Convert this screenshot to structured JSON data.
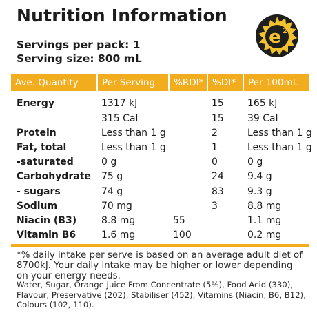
{
  "title": "Nutrition Information",
  "servings_per_pack": "Servings per pack: 1",
  "serving_size": "Serving size: 800 mL",
  "logo": {
    "mark": "e",
    "superscript": "2",
    "accent": "#f2c12e"
  },
  "accent_color": "#f2ad1f",
  "table": {
    "headers": [
      "Ave. Quantity",
      "Per Serving",
      "%RDI*",
      "%DI*",
      "Per 100mL"
    ],
    "rows": [
      {
        "name": "Energy",
        "per_serving": "1317 kJ",
        "rdi": "",
        "di": "15",
        "per_100ml": "165 kJ"
      },
      {
        "name": "",
        "per_serving": "315 Cal",
        "rdi": "",
        "di": "15",
        "per_100ml": "39 Cal"
      },
      {
        "name": "Protein",
        "per_serving": "Less than 1 g",
        "rdi": "",
        "di": "2",
        "per_100ml": "Less than 1 g"
      },
      {
        "name": "Fat, total",
        "per_serving": "Less than 1 g",
        "rdi": "",
        "di": "1",
        "per_100ml": "Less than 1 g"
      },
      {
        "name": "-saturated",
        "per_serving": "0 g",
        "rdi": "",
        "di": "0",
        "per_100ml": "0 g"
      },
      {
        "name": "Carbohydrate",
        "per_serving": "75 g",
        "rdi": "",
        "di": "24",
        "per_100ml": "9.4 g"
      },
      {
        "name": "- sugars",
        "per_serving": "74 g",
        "rdi": "",
        "di": "83",
        "per_100ml": "9.3 g"
      },
      {
        "name": "Sodium",
        "per_serving": "70 mg",
        "rdi": "",
        "di": "3",
        "per_100ml": "8.8 mg"
      },
      {
        "name": "Niacin (B3)",
        "per_serving": "8.8 mg",
        "rdi": "55",
        "di": "",
        "per_100ml": "1.1 mg"
      },
      {
        "name": "Vitamin B6",
        "per_serving": "1.6 mg",
        "rdi": "100",
        "di": "",
        "per_100ml": "0.2 mg"
      }
    ]
  },
  "footnote": "*% daily intake per serve is based on an average adult diet of 8700kJ. Your daily intake may be higher or lower depending on your energy needs.",
  "ingredients": "Water, Sugar, Orange Juice From Concentrate (5%), Food Acid (330), Flavour, Preservative (202), Stabiliser (452), Vitamins (Niacin, B6, B12), Colours (102, 110)."
}
